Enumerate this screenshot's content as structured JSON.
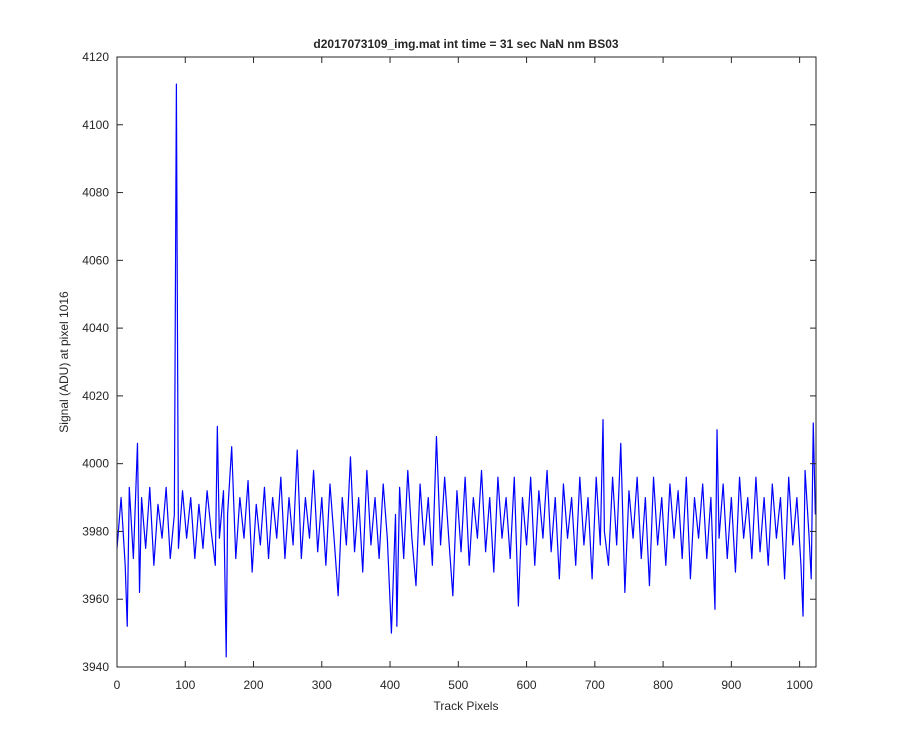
{
  "chart_data": {
    "type": "line",
    "title": "d2017073109_img.mat int time = 31 sec  NaN nm BS03",
    "xlabel": "Track Pixels",
    "ylabel": "Signal (ADU) at pixel 1016",
    "color": "#0000ff",
    "xlim": [
      0,
      1024
    ],
    "ylim": [
      3940,
      4120
    ],
    "xticks": [
      0,
      100,
      200,
      300,
      400,
      500,
      600,
      700,
      800,
      900,
      1000
    ],
    "yticks": [
      3940,
      3960,
      3980,
      4000,
      4020,
      4040,
      4060,
      4080,
      4100,
      4120
    ],
    "grid": false,
    "x": [
      0,
      6,
      12,
      15,
      18,
      24,
      30,
      33,
      36,
      42,
      48,
      54,
      60,
      66,
      72,
      78,
      84,
      87,
      90,
      96,
      102,
      108,
      114,
      120,
      126,
      132,
      138,
      144,
      147,
      150,
      156,
      160,
      162,
      168,
      174,
      180,
      186,
      192,
      198,
      204,
      210,
      216,
      222,
      228,
      234,
      240,
      246,
      252,
      258,
      264,
      270,
      276,
      282,
      288,
      294,
      300,
      306,
      312,
      318,
      324,
      330,
      336,
      342,
      348,
      354,
      360,
      366,
      372,
      378,
      384,
      390,
      396,
      402,
      408,
      410,
      414,
      420,
      426,
      432,
      438,
      444,
      450,
      456,
      462,
      468,
      474,
      480,
      486,
      492,
      498,
      504,
      510,
      516,
      522,
      528,
      534,
      540,
      546,
      552,
      558,
      564,
      570,
      576,
      582,
      588,
      594,
      600,
      606,
      612,
      618,
      624,
      630,
      636,
      642,
      648,
      654,
      660,
      666,
      672,
      678,
      684,
      690,
      696,
      702,
      708,
      712,
      714,
      720,
      726,
      732,
      738,
      744,
      750,
      756,
      762,
      768,
      774,
      780,
      786,
      792,
      798,
      804,
      810,
      816,
      822,
      828,
      834,
      840,
      846,
      852,
      858,
      864,
      870,
      876,
      879,
      882,
      888,
      894,
      900,
      906,
      912,
      918,
      924,
      930,
      936,
      942,
      948,
      954,
      960,
      966,
      972,
      978,
      984,
      990,
      996,
      1002,
      1005,
      1008,
      1014,
      1017,
      1020,
      1023
    ],
    "values": [
      3975,
      3990,
      3970,
      3952,
      3993,
      3972,
      4006,
      3962,
      3990,
      3975,
      3993,
      3970,
      3988,
      3978,
      3993,
      3972,
      3985,
      4112,
      3975,
      3992,
      3978,
      3990,
      3972,
      3988,
      3975,
      3992,
      3980,
      3970,
      4011,
      3978,
      3992,
      3943,
      3985,
      4005,
      3972,
      3990,
      3978,
      3995,
      3968,
      3988,
      3976,
      3993,
      3972,
      3990,
      3978,
      3996,
      3972,
      3990,
      3976,
      4004,
      3972,
      3990,
      3978,
      3998,
      3974,
      3990,
      3970,
      3994,
      3978,
      3961,
      3990,
      3976,
      4002,
      3974,
      3990,
      3968,
      3998,
      3976,
      3990,
      3972,
      3994,
      3978,
      3950,
      3985,
      3952,
      3993,
      3972,
      3998,
      3978,
      3964,
      3994,
      3976,
      3990,
      3970,
      4008,
      3976,
      3996,
      3978,
      3961,
      3992,
      3974,
      3996,
      3970,
      3990,
      3978,
      3998,
      3974,
      3990,
      3968,
      3996,
      3978,
      3990,
      3972,
      3996,
      3958,
      3990,
      3976,
      3996,
      3970,
      3992,
      3978,
      3998,
      3974,
      3990,
      3966,
      3994,
      3978,
      3990,
      3970,
      3996,
      3976,
      3990,
      3966,
      3996,
      3976,
      4013,
      3980,
      3970,
      3996,
      3976,
      4006,
      3962,
      3992,
      3978,
      3996,
      3972,
      3990,
      3964,
      3996,
      3976,
      3990,
      3970,
      3994,
      3978,
      3992,
      3972,
      3996,
      3966,
      3990,
      3978,
      3994,
      3972,
      3990,
      3957,
      4010,
      3978,
      3994,
      3972,
      3990,
      3968,
      3996,
      3978,
      3990,
      3972,
      3996,
      3974,
      3990,
      3970,
      3994,
      3978,
      3990,
      3966,
      3996,
      3976,
      3990,
      3970,
      3955,
      3998,
      3978,
      3966,
      4012,
      3985
    ]
  }
}
